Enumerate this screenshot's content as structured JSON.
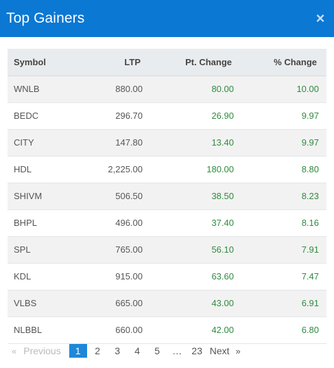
{
  "modal": {
    "title": "Top Gainers",
    "close_icon": "×"
  },
  "table": {
    "columns": [
      "Symbol",
      "LTP",
      "Pt. Change",
      "% Change"
    ],
    "rows": [
      {
        "symbol": "WNLB",
        "ltp": "880.00",
        "pt_change": "80.00",
        "pct_change": "10.00"
      },
      {
        "symbol": "BEDC",
        "ltp": "296.70",
        "pt_change": "26.90",
        "pct_change": "9.97"
      },
      {
        "symbol": "CITY",
        "ltp": "147.80",
        "pt_change": "13.40",
        "pct_change": "9.97"
      },
      {
        "symbol": "HDL",
        "ltp": "2,225.00",
        "pt_change": "180.00",
        "pct_change": "8.80"
      },
      {
        "symbol": "SHIVM",
        "ltp": "506.50",
        "pt_change": "38.50",
        "pct_change": "8.23"
      },
      {
        "symbol": "BHPL",
        "ltp": "496.00",
        "pt_change": "37.40",
        "pct_change": "8.16"
      },
      {
        "symbol": "SPL",
        "ltp": "765.00",
        "pt_change": "56.10",
        "pct_change": "7.91"
      },
      {
        "symbol": "KDL",
        "ltp": "915.00",
        "pt_change": "63.60",
        "pct_change": "7.47"
      },
      {
        "symbol": "VLBS",
        "ltp": "665.00",
        "pt_change": "43.00",
        "pct_change": "6.91"
      },
      {
        "symbol": "NLBBL",
        "ltp": "660.00",
        "pt_change": "42.00",
        "pct_change": "6.80"
      }
    ]
  },
  "pagination": {
    "prev_arrow": "«",
    "previous_label": "Previous",
    "pages": [
      "1",
      "2",
      "3",
      "4",
      "5",
      "…",
      "23"
    ],
    "active_page": "1",
    "next_label": "Next",
    "next_arrow": "»"
  },
  "colors": {
    "header_bg": "#0b78d4",
    "positive": "#2e8b3e",
    "active_page_bg": "#1e88d6"
  }
}
